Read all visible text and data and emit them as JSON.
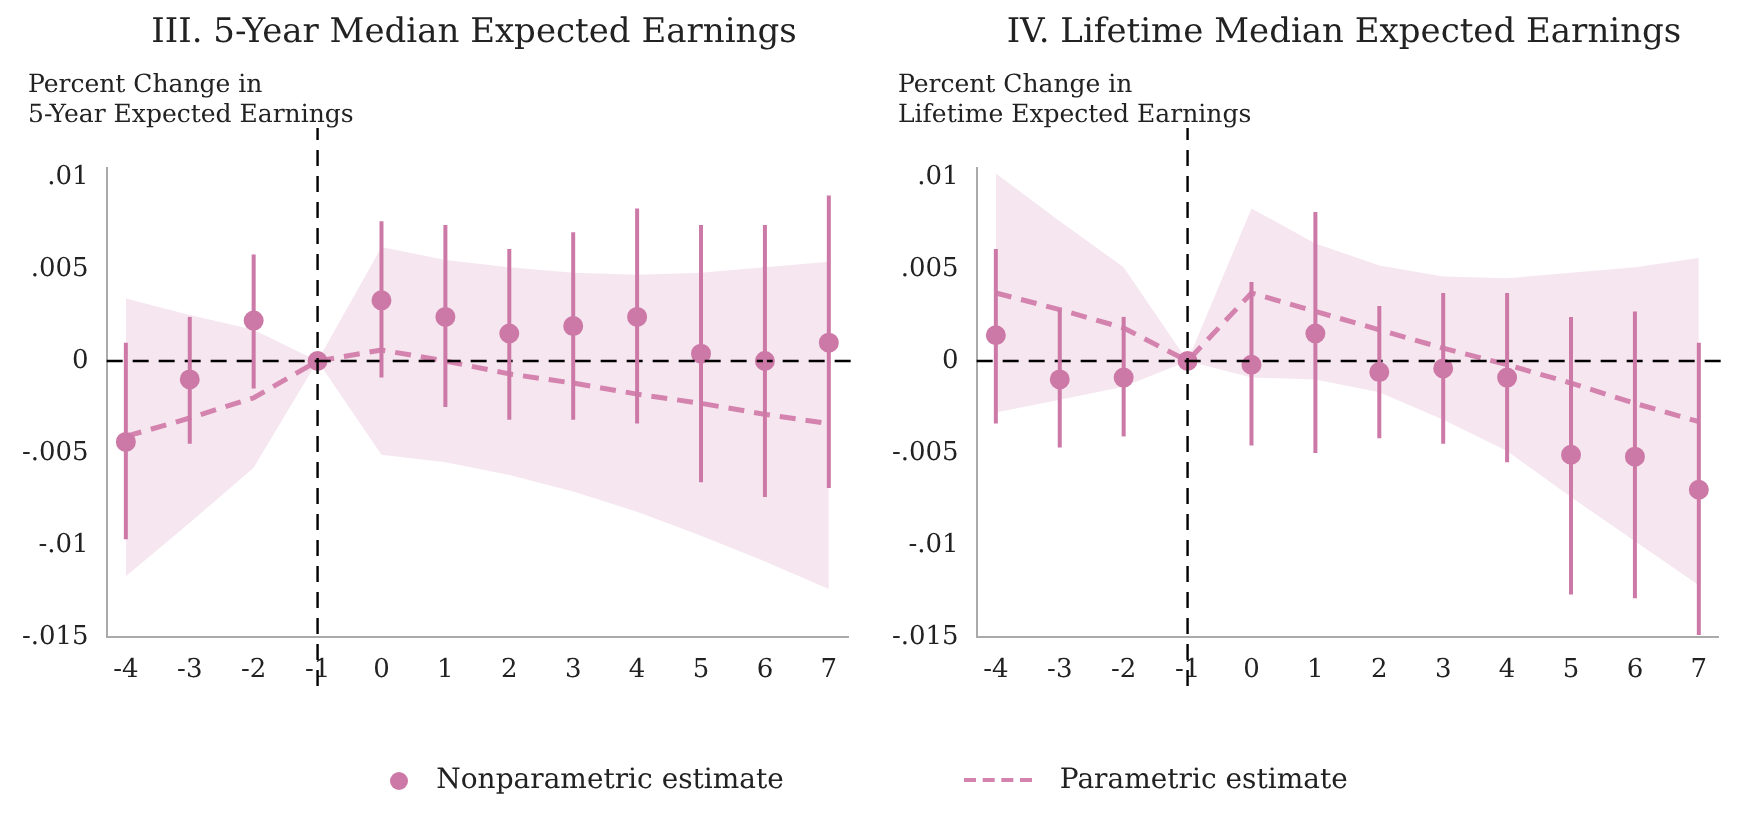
{
  "chart_data": [
    {
      "type": "scatter",
      "title": "III. 5-Year Median Expected Earnings",
      "ylabel": "Percent Change in\n5-Year Expected Earnings",
      "x": [
        -4,
        -3,
        -2,
        -1,
        0,
        1,
        2,
        3,
        4,
        5,
        6,
        7
      ],
      "xlim": [
        -4.3,
        7.3
      ],
      "xticks": [
        -4,
        -3,
        -2,
        -1,
        0,
        1,
        2,
        3,
        4,
        5,
        6,
        7
      ],
      "ylim": [
        -0.015,
        0.0105
      ],
      "yticks": [
        {
          "value": -0.015,
          "label": "-.015"
        },
        {
          "value": -0.01,
          "label": "-.01"
        },
        {
          "value": -0.005,
          "label": "-.005"
        },
        0,
        {
          "value": 0.005,
          "label": ".005"
        },
        {
          "value": 0.01,
          "label": ".01"
        }
      ],
      "grid": false,
      "legend": "bottom",
      "ref_lines": [
        {
          "axis": "x",
          "value": -1,
          "color": "#000000",
          "line_style": "dashed"
        },
        {
          "axis": "y",
          "value": 0,
          "color": "#000000",
          "line_style": "dashed"
        }
      ],
      "series": [
        {
          "name": "Nonparametric estimate",
          "type": "scatter",
          "marker": "circle",
          "color": "#cc79a7",
          "values": [
            -0.0044,
            -0.001,
            0.0022,
            0,
            0.0033,
            0.0024,
            0.0015,
            0.0019,
            0.0024,
            0.0004,
            0,
            0.001
          ],
          "errors": [
            [
              -0.0097,
              0.001
            ],
            [
              -0.0045,
              0.0024
            ],
            [
              -0.0015,
              0.0058
            ],
            null,
            [
              -0.0009,
              0.0076
            ],
            [
              -0.0025,
              0.0074
            ],
            [
              -0.0032,
              0.0061
            ],
            [
              -0.0032,
              0.007
            ],
            [
              -0.0034,
              0.0083
            ],
            [
              -0.0066,
              0.0074
            ],
            [
              -0.0074,
              0.0074
            ],
            [
              -0.0069,
              0.009
            ]
          ]
        },
        {
          "name": "Parametric estimate",
          "type": "line",
          "marker": "none",
          "line_style": "dashed",
          "color": "#d483ae",
          "values": [
            -0.0041,
            -0.0031,
            -0.002,
            0,
            0.0006,
            0,
            -0.0007,
            -0.0012,
            -0.0018,
            -0.0023,
            -0.0029,
            -0.0034
          ],
          "lower": [
            -0.0117,
            -0.0088,
            -0.0058,
            0,
            -0.0051,
            -0.0055,
            -0.0062,
            -0.0071,
            -0.0082,
            -0.0095,
            -0.0109,
            -0.0124
          ],
          "upper": [
            0.0034,
            0.0025,
            0.0017,
            0,
            0.0062,
            0.0055,
            0.0051,
            0.0048,
            0.0047,
            0.0048,
            0.0051,
            0.0054
          ]
        }
      ]
    },
    {
      "type": "scatter",
      "title": "IV. Lifetime Median Expected Earnings",
      "ylabel": "Percent Change in\nLifetime Expected Earnings",
      "x": [
        -4,
        -3,
        -2,
        -1,
        0,
        1,
        2,
        3,
        4,
        5,
        6,
        7
      ],
      "xlim": [
        -4.3,
        7.3
      ],
      "xticks": [
        -4,
        -3,
        -2,
        -1,
        0,
        1,
        2,
        3,
        4,
        5,
        6,
        7
      ],
      "ylim": [
        -0.015,
        0.0105
      ],
      "yticks": [
        {
          "value": -0.015,
          "label": "-.015"
        },
        {
          "value": -0.01,
          "label": "-.01"
        },
        {
          "value": -0.005,
          "label": "-.005"
        },
        0,
        {
          "value": 0.005,
          "label": ".005"
        },
        {
          "value": 0.01,
          "label": ".01"
        }
      ],
      "grid": false,
      "legend": false,
      "ref_lines": [
        {
          "axis": "x",
          "value": -1,
          "color": "#000000",
          "line_style": "dashed"
        },
        {
          "axis": "y",
          "value": 0,
          "color": "#000000",
          "line_style": "dashed"
        }
      ],
      "series": [
        {
          "type": "scatter",
          "marker": "circle",
          "color": "#cc79a7",
          "values": [
            0.0014,
            -0.001,
            -0.0009,
            0,
            -0.0002,
            0.0015,
            -0.0006,
            -0.0004,
            -0.0009,
            -0.0051,
            -0.0052,
            -0.007
          ],
          "errors": [
            [
              -0.0034,
              0.0061
            ],
            [
              -0.0047,
              0.0028
            ],
            [
              -0.0041,
              0.0024
            ],
            null,
            [
              -0.0046,
              0.0043
            ],
            [
              -0.005,
              0.0081
            ],
            [
              -0.0042,
              0.003
            ],
            [
              -0.0045,
              0.0037
            ],
            [
              -0.0055,
              0.0037
            ],
            [
              -0.0127,
              0.0024
            ],
            [
              -0.0129,
              0.0027
            ],
            [
              -0.0149,
              0.001
            ]
          ]
        },
        {
          "type": "line",
          "marker": "none",
          "line_style": "dashed",
          "color": "#d483ae",
          "values": [
            0.0037,
            0.0028,
            0.0018,
            0,
            0.0037,
            0.0027,
            0.0017,
            0.0007,
            -0.0002,
            -0.0012,
            -0.0023,
            -0.0033
          ],
          "lower": [
            -0.0028,
            -0.0021,
            -0.0014,
            0,
            -0.0009,
            -0.001,
            -0.0017,
            -0.0032,
            -0.0049,
            -0.0074,
            -0.0098,
            -0.0122
          ],
          "upper": [
            0.0102,
            0.0076,
            0.0051,
            0,
            0.0083,
            0.0064,
            0.0052,
            0.0046,
            0.0045,
            0.0048,
            0.0051,
            0.0056
          ]
        }
      ]
    }
  ]
}
